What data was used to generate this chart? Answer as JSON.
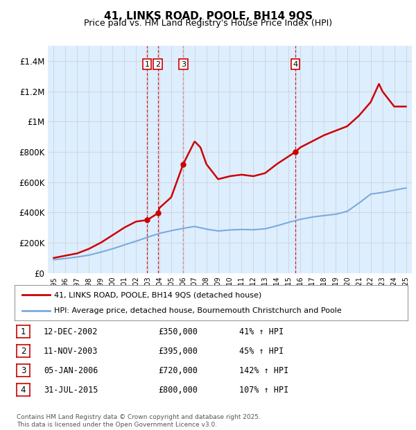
{
  "title": "41, LINKS ROAD, POOLE, BH14 9QS",
  "subtitle": "Price paid vs. HM Land Registry's House Price Index (HPI)",
  "footer": "Contains HM Land Registry data © Crown copyright and database right 2025.\nThis data is licensed under the Open Government Licence v3.0.",
  "legend_property": "41, LINKS ROAD, POOLE, BH14 9QS (detached house)",
  "legend_hpi": "HPI: Average price, detached house, Bournemouth Christchurch and Poole",
  "transactions": [
    {
      "num": 1,
      "date": "12-DEC-2002",
      "price": 350000,
      "price_str": "£350,000",
      "pct": "41%",
      "dir": "↑",
      "year": 2002.95
    },
    {
      "num": 2,
      "date": "11-NOV-2003",
      "price": 395000,
      "price_str": "£395,000",
      "pct": "45%",
      "dir": "↑",
      "year": 2003.87
    },
    {
      "num": 3,
      "date": "05-JAN-2006",
      "price": 720000,
      "price_str": "£720,000",
      "pct": "142%",
      "dir": "↑",
      "year": 2006.03
    },
    {
      "num": 4,
      "date": "31-JUL-2015",
      "price": 800000,
      "price_str": "£800,000",
      "pct": "107%",
      "dir": "↑",
      "year": 2015.58
    }
  ],
  "ylim": [
    0,
    1500000
  ],
  "yticks": [
    0,
    200000,
    400000,
    600000,
    800000,
    1000000,
    1200000,
    1400000
  ],
  "ytick_labels": [
    "£0",
    "£200K",
    "£400K",
    "£600K",
    "£800K",
    "£1M",
    "£1.2M",
    "£1.4M"
  ],
  "xlim_start": 1994.5,
  "xlim_end": 2025.5,
  "property_color": "#cc0000",
  "hpi_color": "#7aaadd",
  "background_color": "#ddeeff",
  "vline_color": "#cc0000",
  "marker_box_color": "#cc0000",
  "prop_shape_years": [
    1995,
    1996,
    1997,
    1998,
    1999,
    2000,
    2001,
    2002,
    2002.95,
    2003.87,
    2004,
    2005,
    2006.03,
    2007.0,
    2007.5,
    2008,
    2009,
    2010,
    2011,
    2012,
    2013,
    2014,
    2015.58,
    2016,
    2017,
    2018,
    2019,
    2020,
    2021,
    2022,
    2022.7,
    2023,
    2024,
    2025
  ],
  "prop_shape_vals": [
    100000,
    115000,
    130000,
    160000,
    200000,
    250000,
    300000,
    340000,
    350000,
    395000,
    430000,
    500000,
    720000,
    870000,
    830000,
    720000,
    620000,
    640000,
    650000,
    640000,
    660000,
    720000,
    800000,
    830000,
    870000,
    910000,
    940000,
    970000,
    1040000,
    1130000,
    1250000,
    1200000,
    1100000,
    1100000
  ],
  "hpi_shape_years": [
    1995,
    1996,
    1997,
    1998,
    1999,
    2000,
    2001,
    2002,
    2003,
    2004,
    2005,
    2006,
    2007,
    2008,
    2009,
    2010,
    2011,
    2012,
    2013,
    2014,
    2015,
    2016,
    2017,
    2018,
    2019,
    2020,
    2021,
    2022,
    2023,
    2024,
    2025
  ],
  "hpi_shape_vals": [
    88000,
    96000,
    106000,
    118000,
    138000,
    160000,
    185000,
    210000,
    237000,
    262000,
    280000,
    295000,
    308000,
    290000,
    278000,
    285000,
    288000,
    286000,
    292000,
    312000,
    335000,
    355000,
    370000,
    380000,
    388000,
    408000,
    462000,
    522000,
    532000,
    548000,
    562000
  ]
}
